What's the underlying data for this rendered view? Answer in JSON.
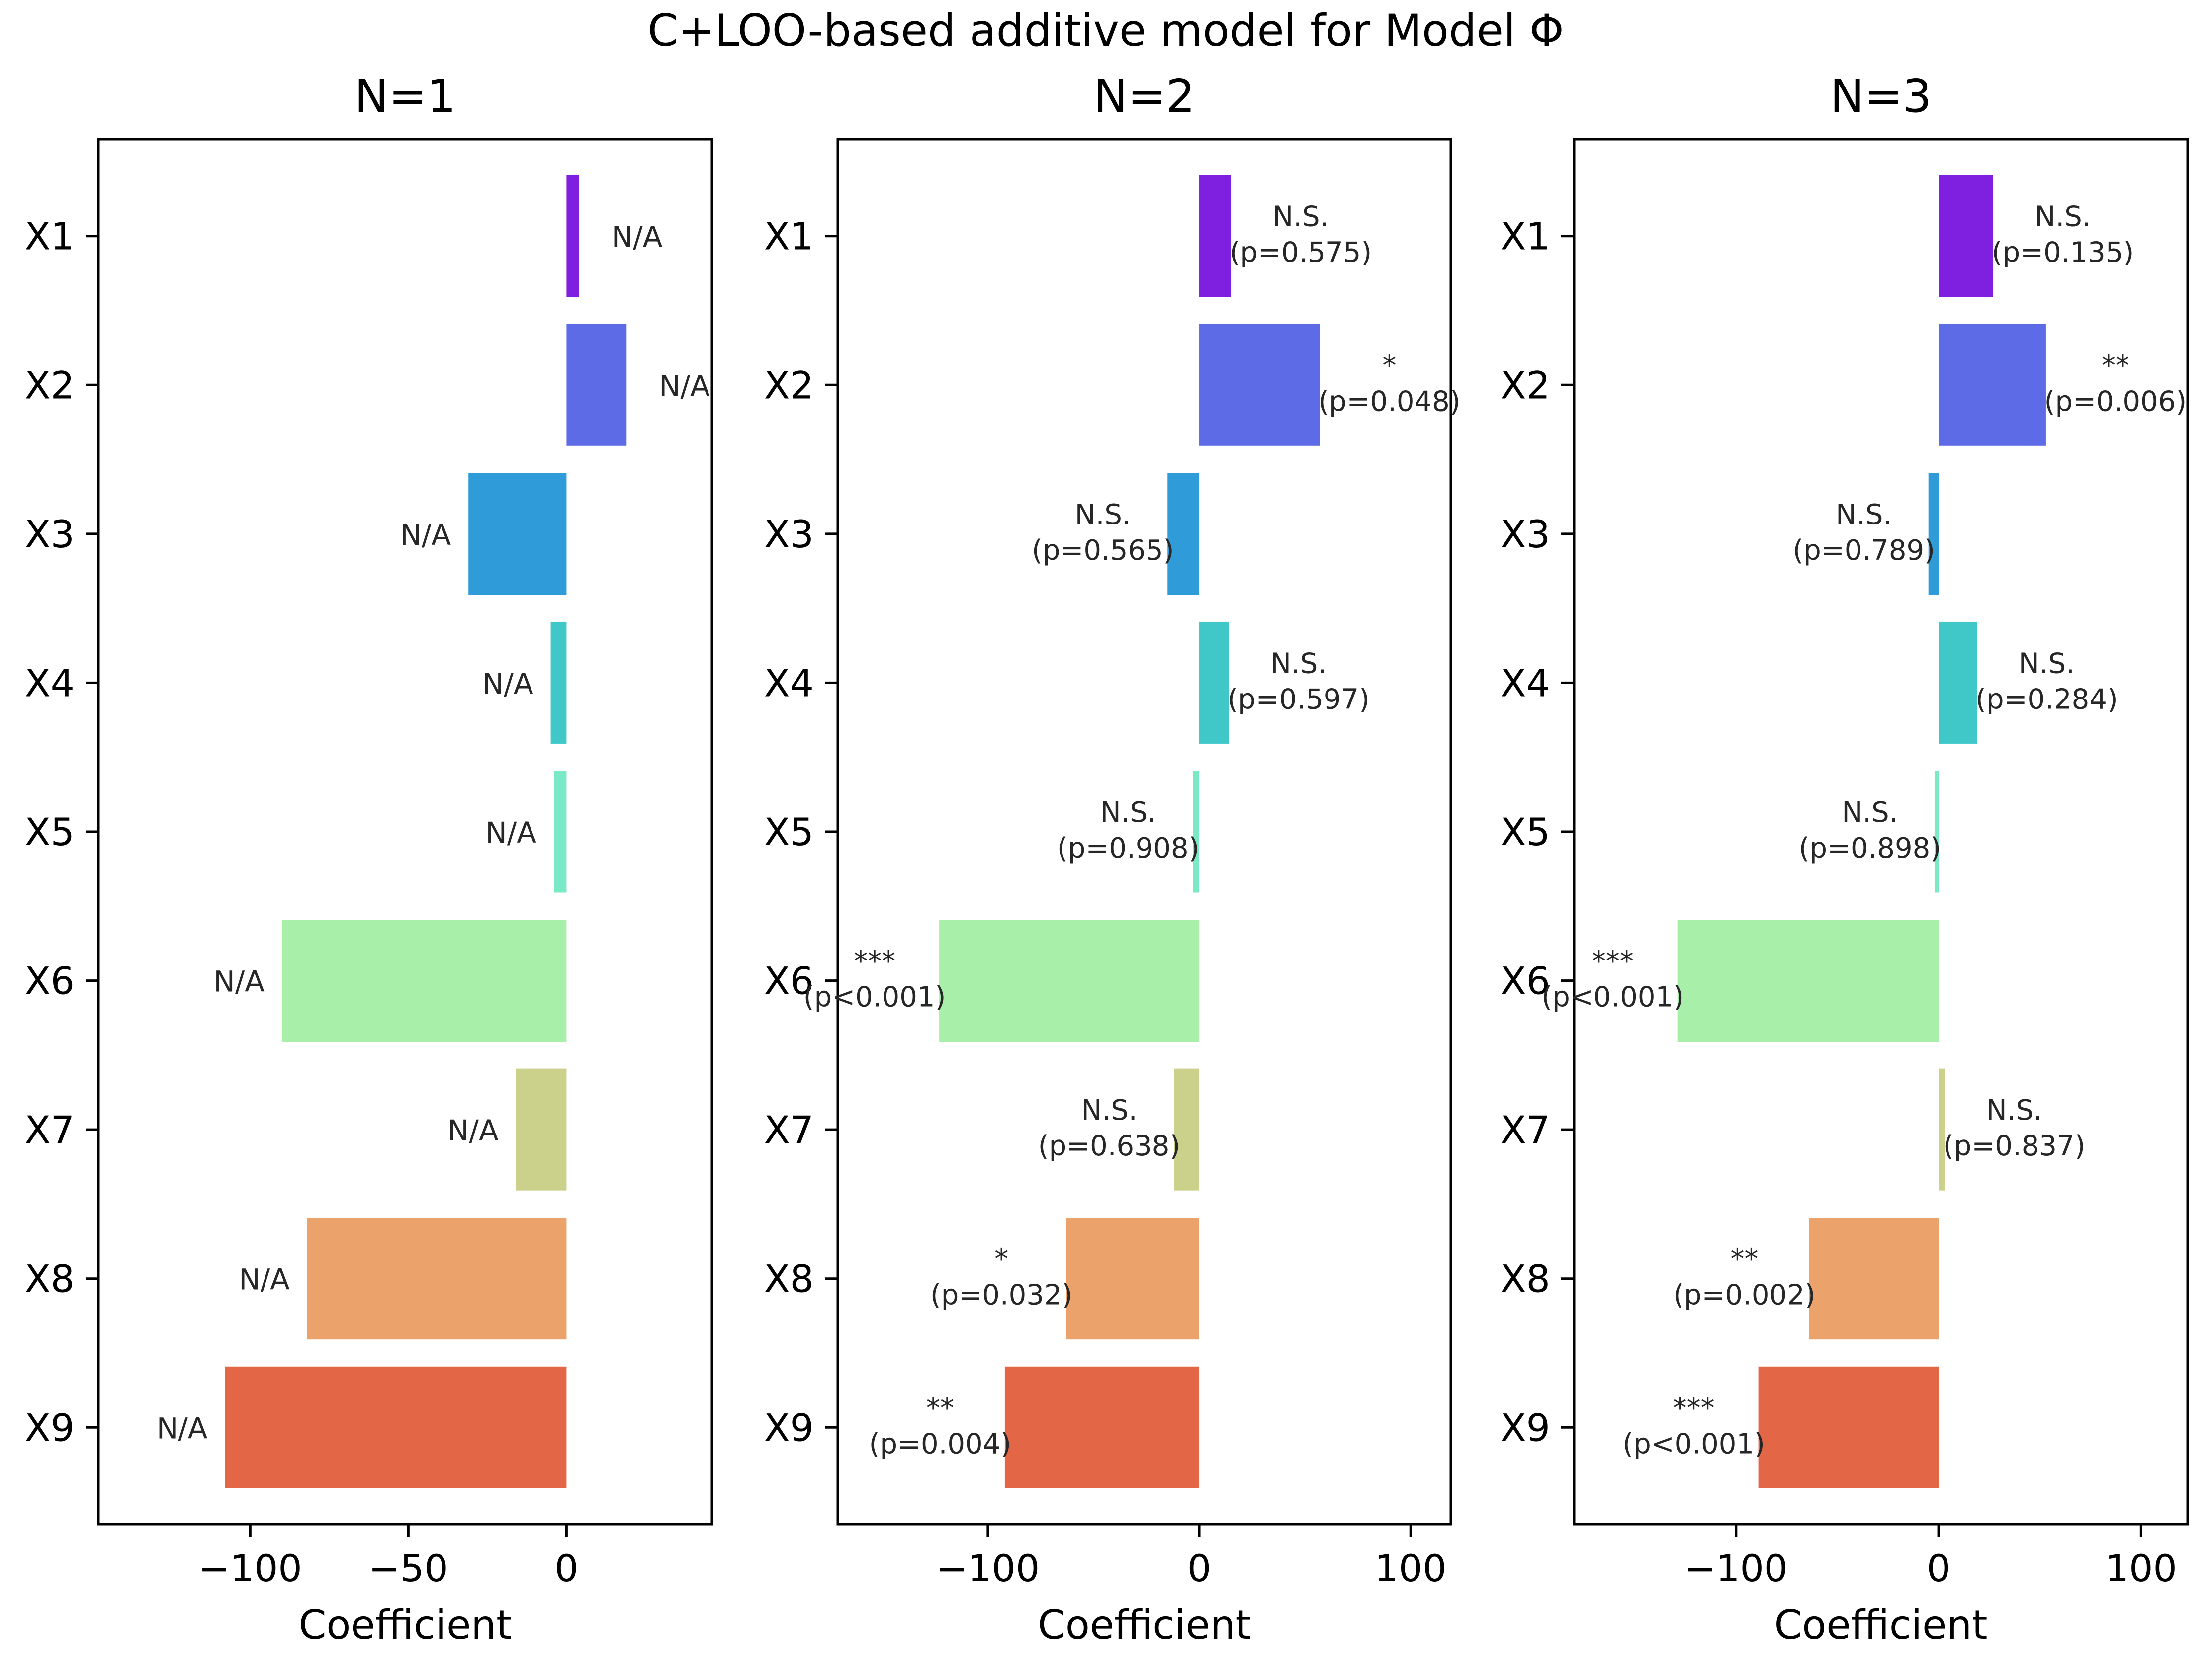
{
  "figure_title": "C+LOO-based additive model for Model Φ",
  "colors": {
    "X1": "#7f1fdf",
    "X2": "#5e6be6",
    "X3": "#2f9bd8",
    "X4": "#40c8c8",
    "X5": "#7ae9c5",
    "X6": "#a8f0aa",
    "X7": "#cbd08a",
    "X8": "#eba26b",
    "X9": "#e36646",
    "axis": "#000000",
    "annotation": "#262626"
  },
  "chart_data": [
    {
      "type": "bar",
      "orientation": "horizontal",
      "title": "N=1",
      "xlabel": "Coefficient",
      "ylabel": "",
      "categories": [
        "X1",
        "X2",
        "X3",
        "X4",
        "X5",
        "X6",
        "X7",
        "X8",
        "X9"
      ],
      "values": [
        4,
        19,
        -31,
        -5,
        -4,
        -90,
        -16,
        -82,
        -108
      ],
      "xlim": [
        -148,
        46
      ],
      "xticks": [
        -100,
        -50,
        0
      ],
      "xtick_labels": [
        "−100",
        "−50",
        "0"
      ],
      "annotations": [
        [
          "N/A"
        ],
        [
          "N/A"
        ],
        [
          "N/A"
        ],
        [
          "N/A"
        ],
        [
          "N/A"
        ],
        [
          "N/A"
        ],
        [
          "N/A"
        ],
        [
          "N/A"
        ],
        [
          "N/A"
        ]
      ],
      "grid": false,
      "legend": "none"
    },
    {
      "type": "bar",
      "orientation": "horizontal",
      "title": "N=2",
      "xlabel": "Coefficient",
      "ylabel": "",
      "categories": [
        "X1",
        "X2",
        "X3",
        "X4",
        "X5",
        "X6",
        "X7",
        "X8",
        "X9"
      ],
      "values": [
        15,
        57,
        -15,
        14,
        -3,
        -123,
        -12,
        -63,
        -92
      ],
      "xlim": [
        -171,
        119
      ],
      "xticks": [
        -100,
        0,
        100
      ],
      "xtick_labels": [
        "−100",
        "0",
        "100"
      ],
      "annotations": [
        [
          "N.S.",
          "(p=0.575)"
        ],
        [
          "*",
          "(p=0.048)"
        ],
        [
          "N.S.",
          "(p=0.565)"
        ],
        [
          "N.S.",
          "(p=0.597)"
        ],
        [
          "N.S.",
          "(p=0.908)"
        ],
        [
          "***",
          "(p<0.001)"
        ],
        [
          "N.S.",
          "(p=0.638)"
        ],
        [
          "*",
          "(p=0.032)"
        ],
        [
          "**",
          "(p=0.004)"
        ]
      ],
      "grid": false,
      "legend": "none"
    },
    {
      "type": "bar",
      "orientation": "horizontal",
      "title": "N=3",
      "xlabel": "Coefficient",
      "ylabel": "",
      "categories": [
        "X1",
        "X2",
        "X3",
        "X4",
        "X5",
        "X6",
        "X7",
        "X8",
        "X9"
      ],
      "values": [
        27,
        53,
        -5,
        19,
        -2,
        -129,
        3,
        -64,
        -89
      ],
      "xlim": [
        -180,
        123
      ],
      "xticks": [
        -100,
        0,
        100
      ],
      "xtick_labels": [
        "−100",
        "0",
        "100"
      ],
      "annotations": [
        [
          "N.S.",
          "(p=0.135)"
        ],
        [
          "**",
          "(p=0.006)"
        ],
        [
          "N.S.",
          "(p=0.789)"
        ],
        [
          "N.S.",
          "(p=0.284)"
        ],
        [
          "N.S.",
          "(p=0.898)"
        ],
        [
          "***",
          "(p<0.001)"
        ],
        [
          "N.S.",
          "(p=0.837)"
        ],
        [
          "**",
          "(p=0.002)"
        ],
        [
          "***",
          "(p<0.001)"
        ]
      ],
      "grid": false,
      "legend": "none"
    }
  ]
}
